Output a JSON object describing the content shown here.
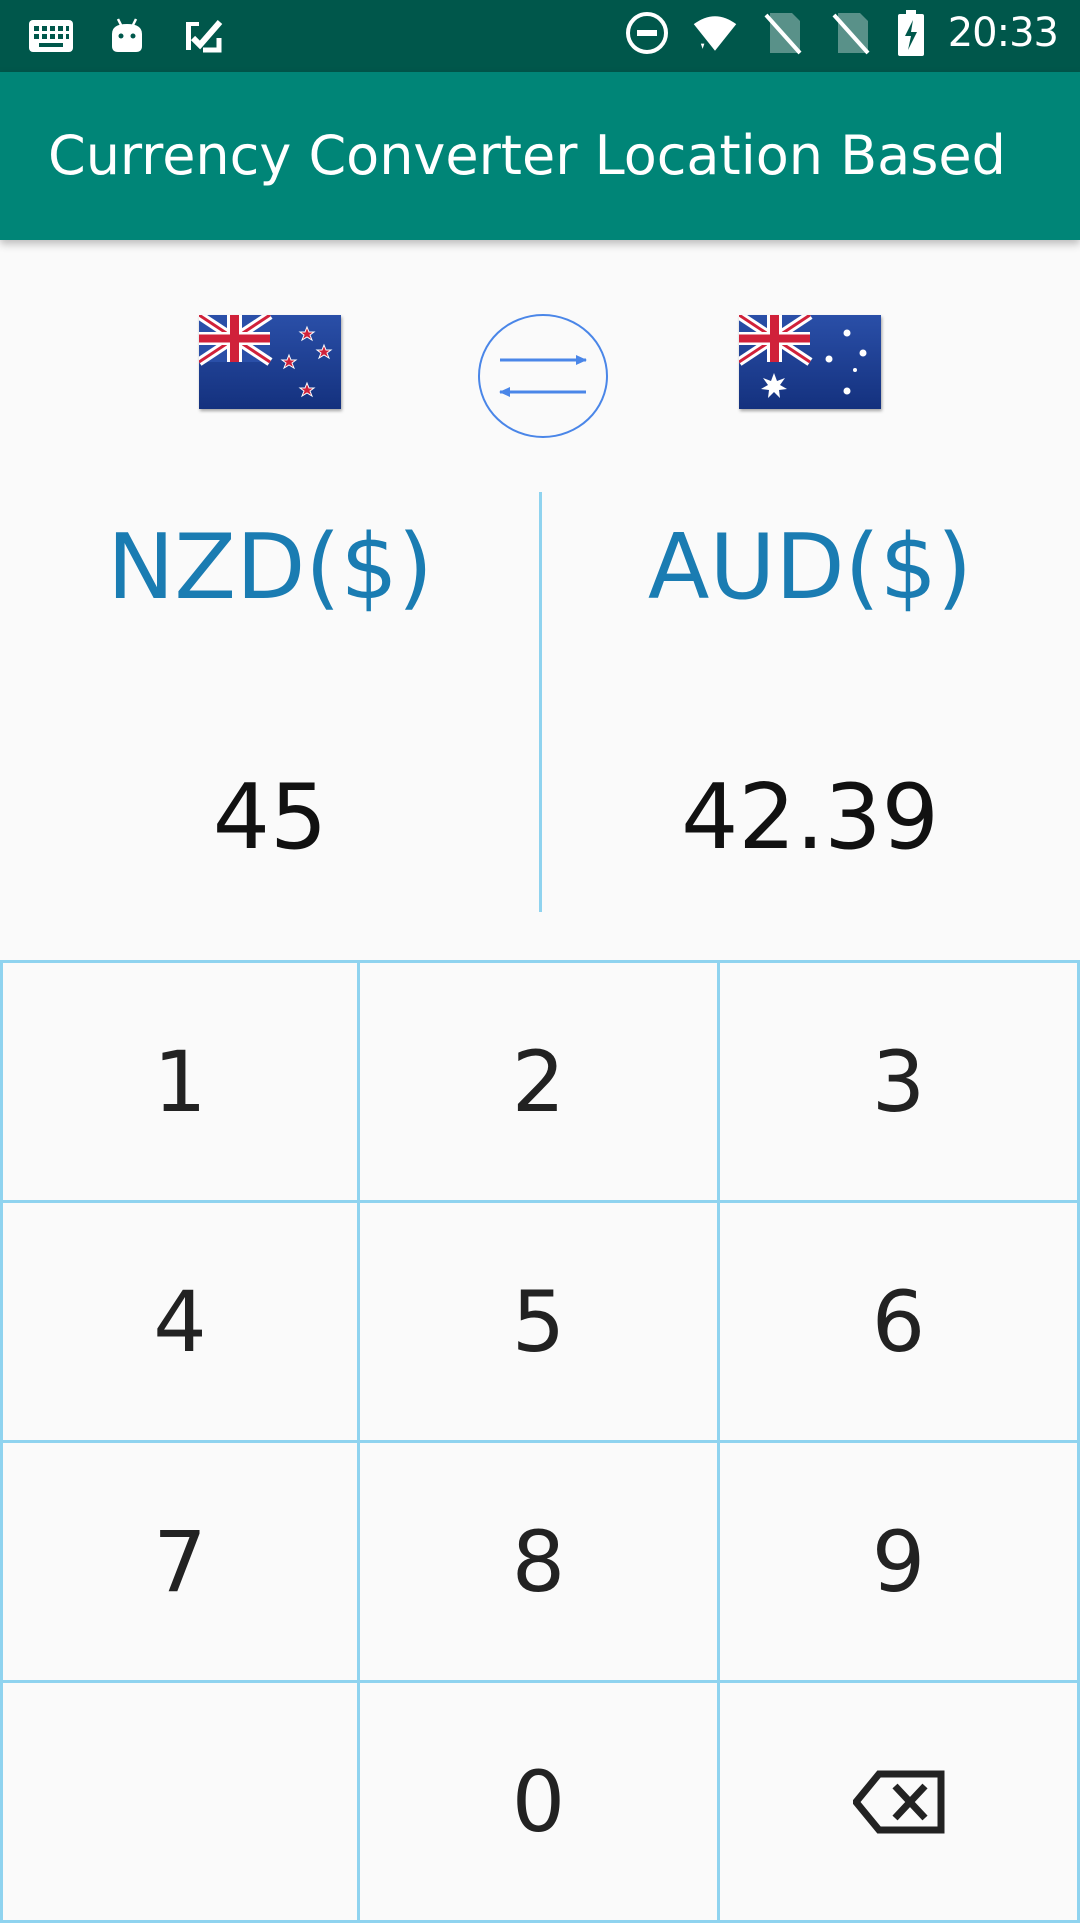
{
  "status_bar": {
    "time": "20:33",
    "icons_left": [
      "keyboard-icon",
      "android-icon",
      "task-check-icon"
    ],
    "icons_right": [
      "do-not-disturb-icon",
      "wifi-icon",
      "no-sim-icon",
      "no-sim-icon",
      "battery-charging-icon"
    ]
  },
  "app_bar": {
    "title": "Currency Converter Location Based"
  },
  "converter": {
    "from": {
      "flag": "new-zealand-flag",
      "label": "NZD($)",
      "amount": "45"
    },
    "to": {
      "flag": "australia-flag",
      "label": "AUD($)",
      "amount": "42.39"
    },
    "swap_icon": "swap-arrows-icon"
  },
  "keypad": {
    "keys": [
      "1",
      "2",
      "3",
      "4",
      "5",
      "6",
      "7",
      "8",
      "9",
      "",
      "0"
    ],
    "backspace_icon": "backspace-icon"
  },
  "colors": {
    "status_bar": "#00574b",
    "app_bar": "#008577",
    "currency_label": "#1a7cb2",
    "grid_line": "#8fd3ef",
    "swap_circle": "#4a86e8"
  }
}
